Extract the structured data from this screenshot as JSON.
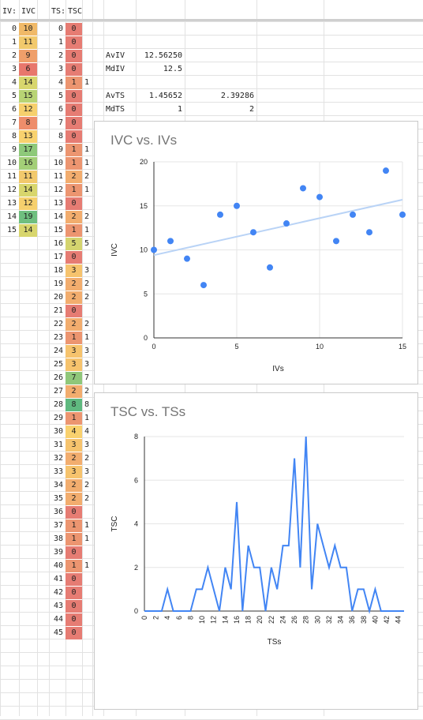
{
  "headers": {
    "iv": "IV:",
    "ivc": "IVC",
    "ts": "TS:",
    "tsc": "TSC"
  },
  "iv_rows": [
    {
      "iv": 0,
      "ivc": 10,
      "color": "#f0b968"
    },
    {
      "iv": 1,
      "ivc": 11,
      "color": "#f2c96c"
    },
    {
      "iv": 2,
      "ivc": 9,
      "color": "#ef9f6a"
    },
    {
      "iv": 3,
      "ivc": 6,
      "color": "#e8776c"
    },
    {
      "iv": 4,
      "ivc": 14,
      "color": "#d8d66d"
    },
    {
      "iv": 5,
      "ivc": 15,
      "color": "#b8d474"
    },
    {
      "iv": 6,
      "ivc": 12,
      "color": "#f6d06d"
    },
    {
      "iv": 7,
      "ivc": 8,
      "color": "#ee8d6b"
    },
    {
      "iv": 8,
      "ivc": 13,
      "color": "#f8d26e"
    },
    {
      "iv": 9,
      "ivc": 17,
      "color": "#8ec97a"
    },
    {
      "iv": 10,
      "ivc": 16,
      "color": "#a3cf77"
    },
    {
      "iv": 11,
      "ivc": 11,
      "color": "#f2c96c"
    },
    {
      "iv": 12,
      "ivc": 14,
      "color": "#d8d66d"
    },
    {
      "iv": 13,
      "ivc": 12,
      "color": "#f6d06d"
    },
    {
      "iv": 14,
      "ivc": 19,
      "color": "#6fbf7f"
    },
    {
      "iv": 15,
      "ivc": 14,
      "color": "#d8d66d"
    }
  ],
  "ts_rows": [
    {
      "ts": 0,
      "tsc": 0,
      "extra": "",
      "color": "#e67c73"
    },
    {
      "ts": 1,
      "tsc": 0,
      "extra": "",
      "color": "#e67c73"
    },
    {
      "ts": 2,
      "tsc": 0,
      "extra": "",
      "color": "#e67c73"
    },
    {
      "ts": 3,
      "tsc": 0,
      "extra": "",
      "color": "#e67c73"
    },
    {
      "ts": 4,
      "tsc": 1,
      "extra": "1",
      "color": "#ec9570"
    },
    {
      "ts": 5,
      "tsc": 0,
      "extra": "",
      "color": "#e67c73"
    },
    {
      "ts": 6,
      "tsc": 0,
      "extra": "",
      "color": "#e67c73"
    },
    {
      "ts": 7,
      "tsc": 0,
      "extra": "",
      "color": "#e67c73"
    },
    {
      "ts": 8,
      "tsc": 0,
      "extra": "",
      "color": "#e67c73"
    },
    {
      "ts": 9,
      "tsc": 1,
      "extra": "1",
      "color": "#ec9570"
    },
    {
      "ts": 10,
      "tsc": 1,
      "extra": "1",
      "color": "#ec9570"
    },
    {
      "ts": 11,
      "tsc": 2,
      "extra": "2",
      "color": "#f2ad6e"
    },
    {
      "ts": 12,
      "tsc": 1,
      "extra": "1",
      "color": "#ec9570"
    },
    {
      "ts": 13,
      "tsc": 0,
      "extra": "",
      "color": "#e67c73"
    },
    {
      "ts": 14,
      "tsc": 2,
      "extra": "2",
      "color": "#f2ad6e"
    },
    {
      "ts": 15,
      "tsc": 1,
      "extra": "1",
      "color": "#ec9570"
    },
    {
      "ts": 16,
      "tsc": 5,
      "extra": "5",
      "color": "#d4d46f"
    },
    {
      "ts": 17,
      "tsc": 0,
      "extra": "",
      "color": "#e67c73"
    },
    {
      "ts": 18,
      "tsc": 3,
      "extra": "3",
      "color": "#f6c36d"
    },
    {
      "ts": 19,
      "tsc": 2,
      "extra": "2",
      "color": "#f2ad6e"
    },
    {
      "ts": 20,
      "tsc": 2,
      "extra": "2",
      "color": "#f2ad6e"
    },
    {
      "ts": 21,
      "tsc": 0,
      "extra": "",
      "color": "#e67c73"
    },
    {
      "ts": 22,
      "tsc": 2,
      "extra": "2",
      "color": "#f2ad6e"
    },
    {
      "ts": 23,
      "tsc": 1,
      "extra": "1",
      "color": "#ec9570"
    },
    {
      "ts": 24,
      "tsc": 3,
      "extra": "3",
      "color": "#f6c36d"
    },
    {
      "ts": 25,
      "tsc": 3,
      "extra": "3",
      "color": "#f6c36d"
    },
    {
      "ts": 26,
      "tsc": 7,
      "extra": "7",
      "color": "#8fc77a"
    },
    {
      "ts": 27,
      "tsc": 2,
      "extra": "2",
      "color": "#f2ad6e"
    },
    {
      "ts": 28,
      "tsc": 8,
      "extra": "8",
      "color": "#5fb97f"
    },
    {
      "ts": 29,
      "tsc": 1,
      "extra": "1",
      "color": "#ec9570"
    },
    {
      "ts": 30,
      "tsc": 4,
      "extra": "4",
      "color": "#f9d16e"
    },
    {
      "ts": 31,
      "tsc": 3,
      "extra": "3",
      "color": "#f6c36d"
    },
    {
      "ts": 32,
      "tsc": 2,
      "extra": "2",
      "color": "#f2ad6e"
    },
    {
      "ts": 33,
      "tsc": 3,
      "extra": "3",
      "color": "#f6c36d"
    },
    {
      "ts": 34,
      "tsc": 2,
      "extra": "2",
      "color": "#f2ad6e"
    },
    {
      "ts": 35,
      "tsc": 2,
      "extra": "2",
      "color": "#f2ad6e"
    },
    {
      "ts": 36,
      "tsc": 0,
      "extra": "",
      "color": "#e67c73"
    },
    {
      "ts": 37,
      "tsc": 1,
      "extra": "1",
      "color": "#ec9570"
    },
    {
      "ts": 38,
      "tsc": 1,
      "extra": "1",
      "color": "#ec9570"
    },
    {
      "ts": 39,
      "tsc": 0,
      "extra": "",
      "color": "#e67c73"
    },
    {
      "ts": 40,
      "tsc": 1,
      "extra": "1",
      "color": "#ec9570"
    },
    {
      "ts": 41,
      "tsc": 0,
      "extra": "",
      "color": "#e67c73"
    },
    {
      "ts": 42,
      "tsc": 0,
      "extra": "",
      "color": "#e67c73"
    },
    {
      "ts": 43,
      "tsc": 0,
      "extra": "",
      "color": "#e67c73"
    },
    {
      "ts": 44,
      "tsc": 0,
      "extra": "",
      "color": "#e67c73"
    },
    {
      "ts": 45,
      "tsc": 0,
      "extra": "",
      "color": "#e67c73"
    }
  ],
  "stats": [
    {
      "label": "AvIV",
      "value": "12.56250",
      "value2": ""
    },
    {
      "label": "MdIV",
      "value": "12.5",
      "value2": ""
    },
    {
      "label": "AvTS",
      "value": "1.45652",
      "value2": "2.39286"
    },
    {
      "label": "MdTS",
      "value": "1",
      "value2": "2"
    }
  ],
  "chart_data": [
    {
      "type": "scatter",
      "title": "IVC vs. IVs",
      "xlabel": "IVs",
      "ylabel": "IVC",
      "xlim": [
        0,
        15
      ],
      "ylim": [
        0,
        20
      ],
      "xticks": [
        0,
        5,
        10,
        15
      ],
      "yticks": [
        0,
        5,
        10,
        15,
        20
      ],
      "x": [
        0,
        1,
        2,
        3,
        4,
        5,
        6,
        7,
        8,
        9,
        10,
        11,
        12,
        13,
        14,
        15
      ],
      "y": [
        10,
        11,
        9,
        6,
        14,
        15,
        12,
        8,
        13,
        17,
        16,
        11,
        14,
        12,
        19,
        14
      ],
      "trendline": [
        9.4,
        15.7
      ],
      "point_color": "#4285f4",
      "trend_color": "#b9d3f6",
      "grid": true
    },
    {
      "type": "line",
      "title": "TSC vs. TSs",
      "xlabel": "TSs",
      "ylabel": "TSC",
      "xlim": [
        0,
        45
      ],
      "ylim": [
        0,
        8
      ],
      "xticks": [
        0,
        2,
        4,
        6,
        8,
        10,
        12,
        14,
        16,
        18,
        20,
        22,
        24,
        26,
        28,
        30,
        32,
        34,
        36,
        38,
        40,
        42,
        44
      ],
      "yticks": [
        0,
        2,
        4,
        6,
        8
      ],
      "x": [
        0,
        1,
        2,
        3,
        4,
        5,
        6,
        7,
        8,
        9,
        10,
        11,
        12,
        13,
        14,
        15,
        16,
        17,
        18,
        19,
        20,
        21,
        22,
        23,
        24,
        25,
        26,
        27,
        28,
        29,
        30,
        31,
        32,
        33,
        34,
        35,
        36,
        37,
        38,
        39,
        40,
        41,
        42,
        43,
        44,
        45
      ],
      "y": [
        0,
        0,
        0,
        0,
        1,
        0,
        0,
        0,
        0,
        1,
        1,
        2,
        1,
        0,
        2,
        1,
        5,
        0,
        3,
        2,
        2,
        0,
        2,
        1,
        3,
        3,
        7,
        2,
        8,
        1,
        4,
        3,
        2,
        3,
        2,
        2,
        0,
        1,
        1,
        0,
        1,
        0,
        0,
        0,
        0,
        0
      ],
      "line_color": "#4285f4",
      "grid": true
    }
  ]
}
